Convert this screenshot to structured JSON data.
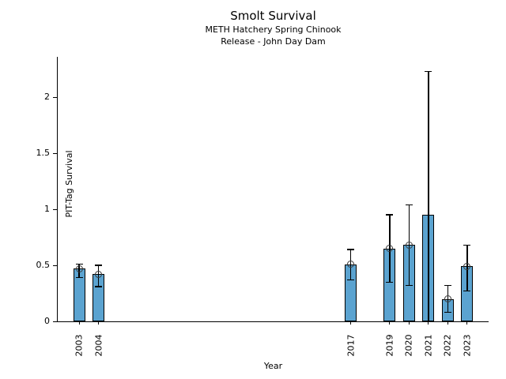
{
  "header": {
    "title": "Smolt Survival",
    "subtitle1": "METH Hatchery Spring Chinook",
    "subtitle2": "Release - John Day Dam"
  },
  "chart_data": {
    "type": "bar",
    "title": "Smolt Survival",
    "subtitle": [
      "METH Hatchery Spring Chinook",
      "Release - John Day Dam"
    ],
    "xlabel": "Year",
    "ylabel": "PIT-Tag Survival",
    "x_range": [
      2001.9,
      2024.1
    ],
    "ylim": [
      0,
      2.36
    ],
    "yticks": [
      0,
      0.5,
      1,
      1.5,
      2
    ],
    "ytick_labels": [
      "0",
      "0.5",
      "1",
      "1.5",
      "2"
    ],
    "grid": false,
    "legend": "none",
    "bar_color": "#5BA3D0",
    "bar_edge_color": "#000000",
    "error_bar_color": "#000000",
    "marker_style": "open-circle",
    "series": [
      {
        "year": 2003,
        "label": "2003",
        "value": 0.47,
        "ci_low": 0.39,
        "ci_high": 0.51,
        "marker": true
      },
      {
        "year": 2004,
        "label": "2004",
        "value": 0.42,
        "ci_low": 0.31,
        "ci_high": 0.5,
        "marker": true
      },
      {
        "year": 2017,
        "label": "2017",
        "value": 0.51,
        "ci_low": 0.37,
        "ci_high": 0.64,
        "marker": true
      },
      {
        "year": 2019,
        "label": "2019",
        "value": 0.65,
        "ci_low": 0.35,
        "ci_high": 0.95,
        "marker": true
      },
      {
        "year": 2020,
        "label": "2020",
        "value": 0.68,
        "ci_low": 0.32,
        "ci_high": 1.04,
        "marker": true
      },
      {
        "year": 2021,
        "label": "2021",
        "value": 0.95,
        "ci_low": 0.0,
        "ci_high": 2.23,
        "marker": false
      },
      {
        "year": 2022,
        "label": "2022",
        "value": 0.2,
        "ci_low": 0.08,
        "ci_high": 0.32,
        "marker": true
      },
      {
        "year": 2023,
        "label": "2023",
        "value": 0.49,
        "ci_low": 0.27,
        "ci_high": 0.68,
        "marker": true
      }
    ]
  }
}
